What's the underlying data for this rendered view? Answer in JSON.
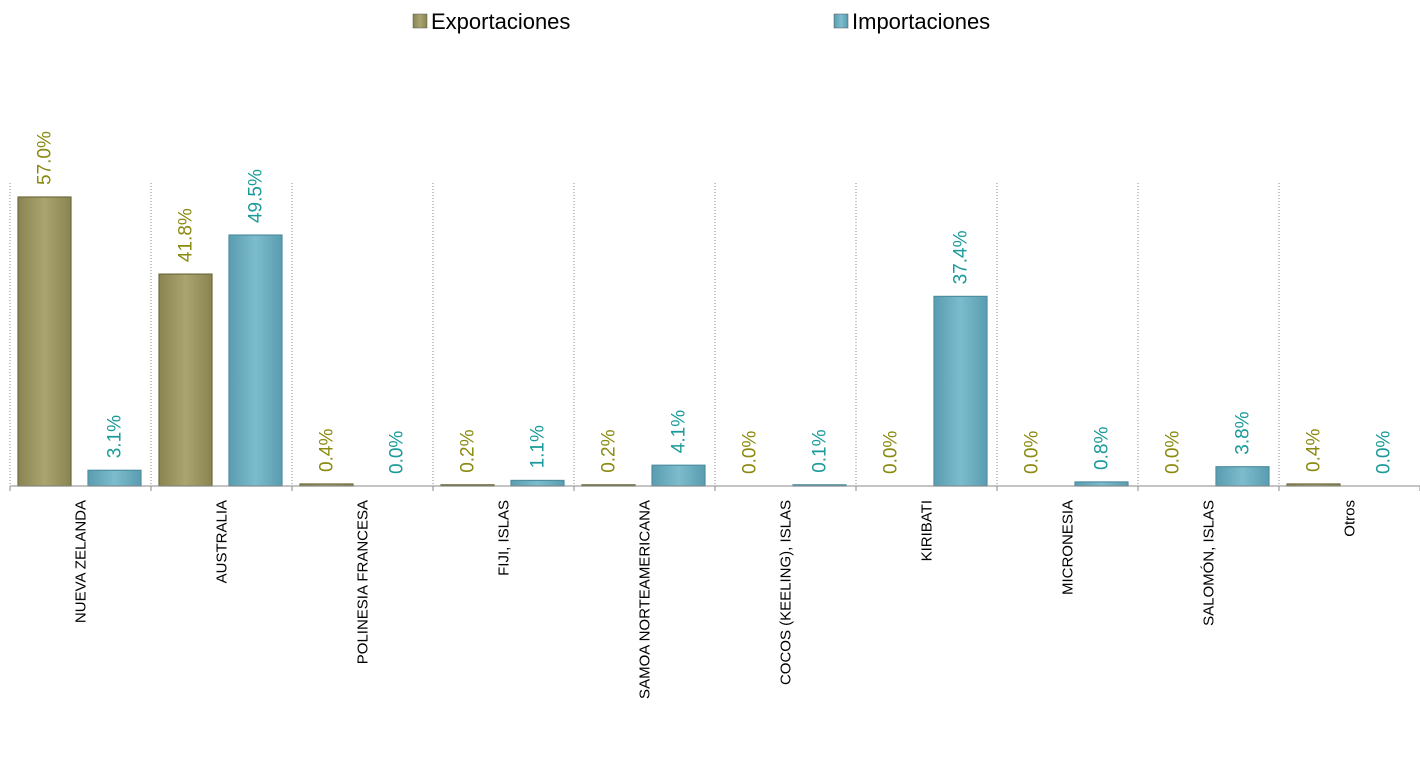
{
  "chart_data": {
    "type": "bar",
    "categories": [
      "NUEVA ZELANDA",
      "AUSTRALIA",
      "POLINESIA FRANCESA",
      "FIJI,   ISLAS",
      "SAMOA NORTEAMERICANA",
      "COCOS (KEELING),  ISLAS",
      "KIRIBATI",
      "MICRONESIA",
      "SALOMÓN, ISLAS",
      "Otros"
    ],
    "series": [
      {
        "name": "Exportaciones",
        "values": [
          57.0,
          41.8,
          0.4,
          0.2,
          0.2,
          0.0,
          0.0,
          0.0,
          0.0,
          0.4
        ],
        "labels": [
          "57.0%",
          "41.8%",
          "0.4%",
          "0.2%",
          "0.2%",
          "0.0%",
          "0.0%",
          "0.0%",
          "0.0%",
          "0.4%"
        ],
        "color": "#a09a66",
        "label_color": "#8a8a10"
      },
      {
        "name": "Importaciones",
        "values": [
          3.1,
          49.5,
          0.0,
          1.1,
          4.1,
          0.1,
          37.4,
          0.8,
          3.8,
          0.0
        ],
        "labels": [
          "3.1%",
          "49.5%",
          "0.0%",
          "1.1%",
          "4.1%",
          "0.1%",
          "37.4%",
          "0.8%",
          "3.8%",
          "0.0%"
        ],
        "color": "#6fb0c2",
        "label_color": "#1a9a9a"
      }
    ],
    "ylim": [
      0,
      60
    ],
    "grid": true,
    "legend_position": "top-center"
  }
}
